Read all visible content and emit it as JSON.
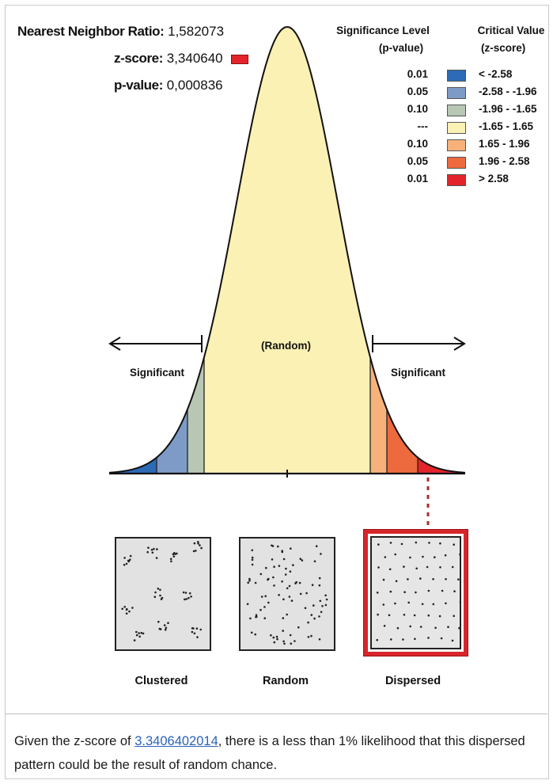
{
  "stats": {
    "nnr_label": "Nearest Neighbor Ratio:",
    "nnr_value": "1,582073",
    "z_label": "z-score:",
    "z_value": "3,340640",
    "p_label": "p-value:",
    "p_value": "0,000836"
  },
  "legend": {
    "sig_header_1": "Significance Level",
    "sig_header_2": "(p-value)",
    "crit_header_1": "Critical Value",
    "crit_header_2": "(z-score)",
    "rows": [
      {
        "p": "0.01",
        "z": "< -2.58",
        "color": "#2c6ab6"
      },
      {
        "p": "0.05",
        "z": "-2.58 - -1.96",
        "color": "#7d9bc6"
      },
      {
        "p": "0.10",
        "z": "-1.96 - -1.65",
        "color": "#b8c7b4"
      },
      {
        "p": "---",
        "z": "-1.65 - 1.65",
        "color": "#fbf1b4"
      },
      {
        "p": "0.10",
        "z": "1.65 - 1.96",
        "color": "#f7b27c"
      },
      {
        "p": "0.05",
        "z": "1.96 - 2.58",
        "color": "#ed6a3e"
      },
      {
        "p": "0.01",
        "z": "> 2.58",
        "color": "#e3242b"
      }
    ]
  },
  "curve": {
    "left_label": "Significant",
    "center_label": "(Random)",
    "right_label": "Significant",
    "region_colors": [
      "#2c6ab6",
      "#7d9bc6",
      "#b8c7b4",
      "#fbf1b4",
      "#f7b27c",
      "#ed6a3e",
      "#e3242b"
    ]
  },
  "patterns": {
    "clustered": "Clustered",
    "random": "Random",
    "dispersed": "Dispersed"
  },
  "summary": {
    "prefix": "Given the z-score of ",
    "z_link": "3.3406402014",
    "suffix": ", there is a less than 1% likelihood that this dispersed pattern could be the result of random chance."
  }
}
